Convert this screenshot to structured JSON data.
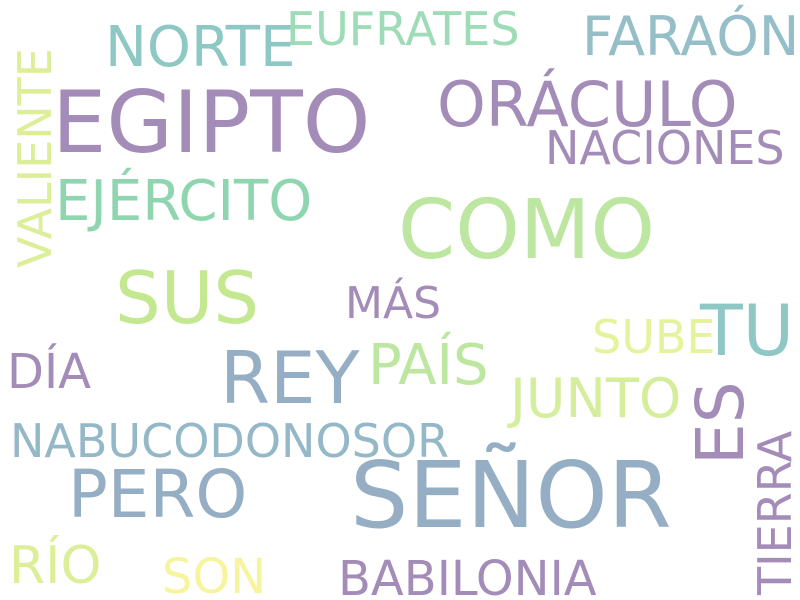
{
  "word_cloud": {
    "words": [
      {
        "text": "EGIPTO",
        "color": "#a48cb8"
      },
      {
        "text": "SEÑOR",
        "color": "#95aec4"
      },
      {
        "text": "COMO",
        "color": "#bde6a0"
      },
      {
        "text": "SUS",
        "color": "#c4e890"
      },
      {
        "text": "REY",
        "color": "#95aec4"
      },
      {
        "text": "ORÁCULO",
        "color": "#a48cb8"
      },
      {
        "text": "EJÉRCITO",
        "color": "#8fd6b0"
      },
      {
        "text": "PERO",
        "color": "#95aec4"
      },
      {
        "text": "TU",
        "color": "#8ec8c4"
      },
      {
        "text": "ES",
        "color": "#a48cb8"
      },
      {
        "text": "NORTE",
        "color": "#8ec8c4"
      },
      {
        "text": "FARAÓN",
        "color": "#95bec8"
      },
      {
        "text": "EUFRATES",
        "color": "#9edcb8"
      },
      {
        "text": "NACIONES",
        "color": "#a48cb8"
      },
      {
        "text": "VALIENTE",
        "color": "#dcee98"
      },
      {
        "text": "MÁS",
        "color": "#a48cb8"
      },
      {
        "text": "PAÍS",
        "color": "#bde6a0"
      },
      {
        "text": "SUBE",
        "color": "#e6f29c"
      },
      {
        "text": "DÍA",
        "color": "#a48cb8"
      },
      {
        "text": "JUNTO",
        "color": "#d4ee9c"
      },
      {
        "text": "NABUCODONOSOR",
        "color": "#95b8c8"
      },
      {
        "text": "TIERRA",
        "color": "#a48cb8"
      },
      {
        "text": "RÍO",
        "color": "#dcee98"
      },
      {
        "text": "SON",
        "color": "#f6f49c"
      },
      {
        "text": "BABILONIA",
        "color": "#a48cb8"
      }
    ]
  }
}
